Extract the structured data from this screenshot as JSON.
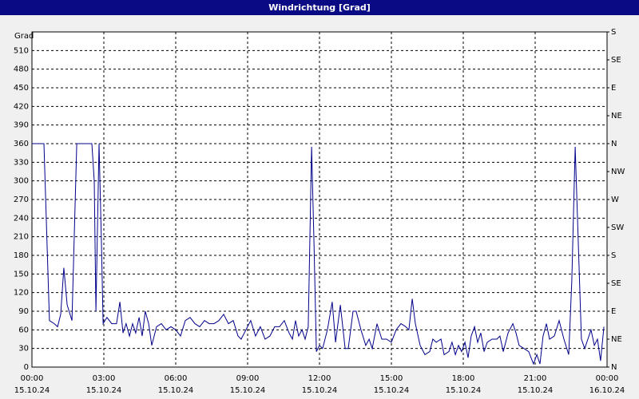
{
  "chart_data": {
    "type": "line",
    "title": "Windrichtung [Grad]",
    "ylabel": "Grad",
    "xlim": [
      0,
      24
    ],
    "ylim": [
      0,
      540
    ],
    "y2lim": [
      0,
      540
    ],
    "grid": true,
    "xticks": [
      {
        "value": 0,
        "label": "00:00",
        "date": "15.10.24"
      },
      {
        "value": 3,
        "label": "03:00",
        "date": "15.10.24"
      },
      {
        "value": 6,
        "label": "06:00",
        "date": "15.10.24"
      },
      {
        "value": 9,
        "label": "09:00",
        "date": "15.10.24"
      },
      {
        "value": 12,
        "label": "12:00",
        "date": "15.10.24"
      },
      {
        "value": 15,
        "label": "15:00",
        "date": "15.10.24"
      },
      {
        "value": 18,
        "label": "18:00",
        "date": "15.10.24"
      },
      {
        "value": 21,
        "label": "21:00",
        "date": "15.10.24"
      },
      {
        "value": 24,
        "label": "00:00",
        "date": "16.10.24"
      }
    ],
    "yticks": [
      0,
      30,
      60,
      90,
      120,
      150,
      180,
      210,
      240,
      270,
      300,
      330,
      360,
      390,
      420,
      450,
      480,
      510
    ],
    "y2ticks": [
      {
        "value": 0,
        "label": "N"
      },
      {
        "value": 45,
        "label": "NE"
      },
      {
        "value": 90,
        "label": "E"
      },
      {
        "value": 135,
        "label": "SE"
      },
      {
        "value": 180,
        "label": "S"
      },
      {
        "value": 225,
        "label": "SW"
      },
      {
        "value": 270,
        "label": "W"
      },
      {
        "value": 315,
        "label": "NW"
      },
      {
        "value": 360,
        "label": "N"
      },
      {
        "value": 405,
        "label": "NE"
      },
      {
        "value": 450,
        "label": "E"
      },
      {
        "value": 495,
        "label": "SE"
      },
      {
        "value": 540,
        "label": "S"
      }
    ],
    "series": [
      {
        "color": "#00008b",
        "x": [
          0,
          0.5,
          0.73,
          0.93,
          1.07,
          1.2,
          1.33,
          1.47,
          1.67,
          1.87,
          2.5,
          2.6,
          2.67,
          2.8,
          2.9,
          2.97,
          3.13,
          3.33,
          3.53,
          3.67,
          3.8,
          3.93,
          4.07,
          4.2,
          4.33,
          4.47,
          4.6,
          4.73,
          4.87,
          5,
          5.2,
          5.4,
          5.6,
          5.8,
          6,
          6.2,
          6.4,
          6.6,
          6.8,
          7,
          7.2,
          7.4,
          7.6,
          7.8,
          8,
          8.2,
          8.4,
          8.6,
          8.73,
          8.93,
          9.13,
          9.33,
          9.53,
          9.73,
          9.93,
          10.13,
          10.33,
          10.53,
          10.73,
          10.87,
          11,
          11.13,
          11.27,
          11.4,
          11.53,
          11.67,
          11.77,
          11.87,
          12,
          12.13,
          12.33,
          12.53,
          12.67,
          12.87,
          13.07,
          13.2,
          13.4,
          13.53,
          13.73,
          13.93,
          14.07,
          14.2,
          14.4,
          14.6,
          14.8,
          15,
          15.2,
          15.4,
          15.6,
          15.73,
          15.87,
          16,
          16.2,
          16.4,
          16.6,
          16.73,
          16.87,
          17.07,
          17.2,
          17.4,
          17.53,
          17.67,
          17.8,
          17.93,
          18.07,
          18.2,
          18.33,
          18.47,
          18.6,
          18.73,
          18.87,
          19,
          19.2,
          19.4,
          19.53,
          19.67,
          19.87,
          20.07,
          20.2,
          20.33,
          20.53,
          20.73,
          20.93,
          21.07,
          21.2,
          21.33,
          21.47,
          21.6,
          21.8,
          22,
          22.2,
          22.4,
          22.53,
          22.67,
          22.8,
          22.93,
          23.07,
          23.2,
          23.33,
          23.47,
          23.6,
          23.73,
          23.87
        ],
        "values": [
          360,
          360,
          75,
          70,
          65,
          85,
          160,
          100,
          75,
          360,
          360,
          300,
          90,
          360,
          200,
          70,
          80,
          70,
          70,
          105,
          55,
          70,
          50,
          70,
          55,
          80,
          50,
          90,
          70,
          35,
          65,
          70,
          60,
          65,
          60,
          50,
          75,
          80,
          70,
          65,
          75,
          70,
          70,
          75,
          85,
          70,
          75,
          50,
          45,
          60,
          75,
          50,
          65,
          45,
          50,
          65,
          65,
          75,
          55,
          45,
          75,
          50,
          60,
          45,
          65,
          355,
          200,
          25,
          35,
          30,
          60,
          105,
          40,
          100,
          30,
          30,
          90,
          90,
          60,
          35,
          45,
          30,
          70,
          45,
          45,
          40,
          60,
          70,
          65,
          60,
          110,
          70,
          35,
          20,
          25,
          45,
          40,
          45,
          20,
          25,
          40,
          20,
          35,
          25,
          40,
          15,
          50,
          65,
          40,
          55,
          25,
          40,
          45,
          45,
          50,
          25,
          55,
          70,
          55,
          35,
          30,
          25,
          5,
          20,
          5,
          50,
          70,
          45,
          50,
          75,
          45,
          20,
          140,
          355,
          200,
          45,
          30,
          45,
          60,
          35,
          45,
          10,
          65
        ]
      }
    ]
  }
}
